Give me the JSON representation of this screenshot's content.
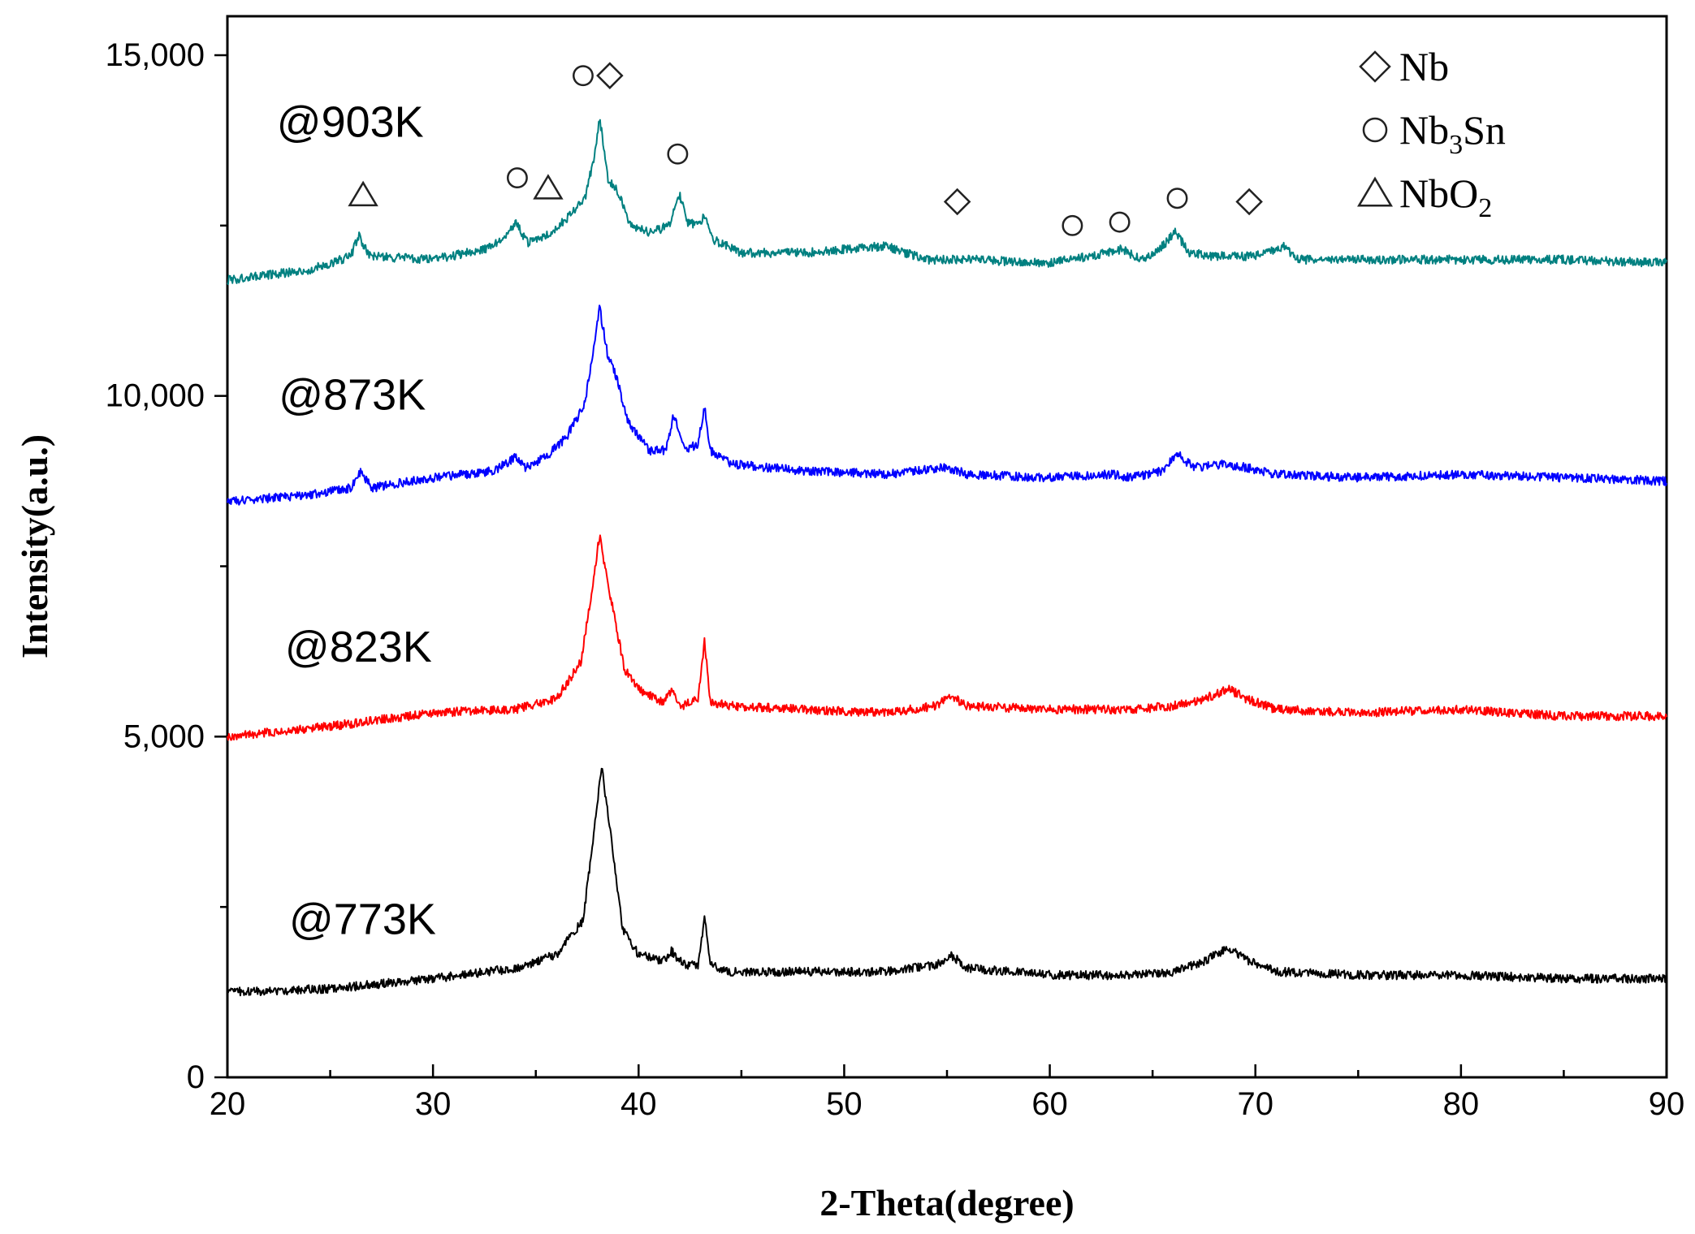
{
  "chart_data": {
    "type": "line",
    "title": "",
    "xlabel": "2-Theta(degree)",
    "ylabel": "Intensity(a.u.)",
    "xlim": [
      20,
      90
    ],
    "ylim": [
      0,
      15000
    ],
    "xticks": [
      20,
      30,
      40,
      50,
      60,
      70,
      80,
      90
    ],
    "xtick_labels": [
      "20",
      "30",
      "40",
      "50",
      "60",
      "70",
      "80",
      "90"
    ],
    "yticks": [
      0,
      5000,
      10000,
      15000
    ],
    "ytick_labels": [
      "0",
      "5,000",
      "10,000",
      "15,000"
    ],
    "grid": false,
    "series": [
      {
        "name": "@773K",
        "color": "#000000",
        "label_at": [
          23.0,
          2100
        ],
        "points": [
          [
            20,
            1250
          ],
          [
            25,
            1300
          ],
          [
            30,
            1450
          ],
          [
            34,
            1600
          ],
          [
            36,
            1800
          ],
          [
            37.3,
            2300
          ],
          [
            37.9,
            3800
          ],
          [
            38.2,
            4550
          ],
          [
            38.6,
            3700
          ],
          [
            39.2,
            2200
          ],
          [
            40,
            1800
          ],
          [
            41.2,
            1700
          ],
          [
            41.6,
            1850
          ],
          [
            42.2,
            1650
          ],
          [
            42.9,
            1650
          ],
          [
            43.2,
            2350
          ],
          [
            43.5,
            1650
          ],
          [
            44.5,
            1550
          ],
          [
            48,
            1550
          ],
          [
            52,
            1550
          ],
          [
            54.5,
            1650
          ],
          [
            55.2,
            1800
          ],
          [
            56,
            1600
          ],
          [
            60,
            1500
          ],
          [
            64,
            1500
          ],
          [
            66,
            1550
          ],
          [
            67.5,
            1700
          ],
          [
            68.7,
            1900
          ],
          [
            69.7,
            1700
          ],
          [
            71,
            1550
          ],
          [
            75,
            1500
          ],
          [
            80,
            1500
          ],
          [
            85,
            1450
          ],
          [
            90,
            1450
          ]
        ]
      },
      {
        "name": "@823K",
        "color": "#ff0000",
        "label_at": [
          22.8,
          6100
        ],
        "points": [
          [
            20,
            5000
          ],
          [
            25,
            5150
          ],
          [
            30,
            5350
          ],
          [
            34,
            5400
          ],
          [
            36,
            5550
          ],
          [
            37.2,
            6100
          ],
          [
            37.8,
            7300
          ],
          [
            38.1,
            7950
          ],
          [
            38.6,
            7100
          ],
          [
            39.3,
            6000
          ],
          [
            40.2,
            5650
          ],
          [
            41.2,
            5500
          ],
          [
            41.6,
            5700
          ],
          [
            42.1,
            5450
          ],
          [
            42.9,
            5550
          ],
          [
            43.2,
            6400
          ],
          [
            43.5,
            5500
          ],
          [
            44.5,
            5450
          ],
          [
            48,
            5400
          ],
          [
            52,
            5350
          ],
          [
            54.5,
            5450
          ],
          [
            55.2,
            5600
          ],
          [
            56,
            5450
          ],
          [
            60,
            5400
          ],
          [
            64,
            5400
          ],
          [
            66,
            5450
          ],
          [
            67.5,
            5550
          ],
          [
            68.7,
            5700
          ],
          [
            69.6,
            5550
          ],
          [
            71,
            5400
          ],
          [
            75,
            5350
          ],
          [
            80,
            5400
          ],
          [
            85,
            5300
          ],
          [
            90,
            5300
          ]
        ]
      },
      {
        "name": "@873K",
        "color": "#0000ff",
        "label_at": [
          22.5,
          9800
        ],
        "points": [
          [
            20,
            8450
          ],
          [
            24,
            8550
          ],
          [
            26,
            8650
          ],
          [
            26.5,
            8900
          ],
          [
            27,
            8650
          ],
          [
            30,
            8800
          ],
          [
            33,
            8900
          ],
          [
            34,
            9100
          ],
          [
            34.5,
            8950
          ],
          [
            35.5,
            9100
          ],
          [
            36.5,
            9400
          ],
          [
            37.4,
            9900
          ],
          [
            38.1,
            11300
          ],
          [
            38.5,
            10600
          ],
          [
            38.9,
            10300
          ],
          [
            39.5,
            9600
          ],
          [
            40.5,
            9200
          ],
          [
            41.3,
            9200
          ],
          [
            41.7,
            9700
          ],
          [
            42.3,
            9200
          ],
          [
            42.9,
            9300
          ],
          [
            43.2,
            9850
          ],
          [
            43.5,
            9200
          ],
          [
            44.5,
            9000
          ],
          [
            48,
            8900
          ],
          [
            52,
            8850
          ],
          [
            55,
            8950
          ],
          [
            56,
            8850
          ],
          [
            60,
            8800
          ],
          [
            63,
            8850
          ],
          [
            64,
            8800
          ],
          [
            65.5,
            8900
          ],
          [
            66.2,
            9150
          ],
          [
            67,
            8950
          ],
          [
            68.5,
            9000
          ],
          [
            69.5,
            8950
          ],
          [
            71,
            8850
          ],
          [
            75,
            8800
          ],
          [
            80,
            8850
          ],
          [
            85,
            8800
          ],
          [
            90,
            8750
          ]
        ]
      },
      {
        "name": "@903K",
        "color": "#008080",
        "label_at": [
          22.4,
          13800
        ],
        "points": [
          [
            20,
            11700
          ],
          [
            24,
            11850
          ],
          [
            26,
            12050
          ],
          [
            26.4,
            12350
          ],
          [
            26.9,
            12050
          ],
          [
            30,
            12000
          ],
          [
            32.5,
            12150
          ],
          [
            33.5,
            12300
          ],
          [
            34,
            12550
          ],
          [
            34.6,
            12250
          ],
          [
            35.5,
            12350
          ],
          [
            36.5,
            12600
          ],
          [
            37.4,
            12900
          ],
          [
            37.9,
            13600
          ],
          [
            38.1,
            14100
          ],
          [
            38.5,
            13200
          ],
          [
            39,
            13000
          ],
          [
            39.6,
            12500
          ],
          [
            40.6,
            12400
          ],
          [
            41.5,
            12500
          ],
          [
            42,
            12950
          ],
          [
            42.4,
            12550
          ],
          [
            42.9,
            12500
          ],
          [
            43.2,
            12650
          ],
          [
            43.6,
            12300
          ],
          [
            45,
            12100
          ],
          [
            48,
            12100
          ],
          [
            52,
            12200
          ],
          [
            54,
            12000
          ],
          [
            56,
            12000
          ],
          [
            60,
            11950
          ],
          [
            62,
            12050
          ],
          [
            63.5,
            12150
          ],
          [
            64.5,
            12000
          ],
          [
            65.5,
            12200
          ],
          [
            66.1,
            12400
          ],
          [
            66.8,
            12100
          ],
          [
            68,
            12050
          ],
          [
            70,
            12050
          ],
          [
            71.4,
            12200
          ],
          [
            72,
            12000
          ],
          [
            75,
            12000
          ],
          [
            80,
            12000
          ],
          [
            85,
            12000
          ],
          [
            90,
            11950
          ]
        ]
      }
    ],
    "legend": {
      "placement": "top-right",
      "entries": [
        {
          "marker": "diamond",
          "label": "Nb"
        },
        {
          "marker": "circle",
          "label": "Nb",
          "subscript": "3",
          "label_suffix": "Sn"
        },
        {
          "marker": "triangle",
          "label": "NbO",
          "subscript": "2"
        }
      ]
    },
    "annotations": [
      {
        "marker": "triangle",
        "x": 26.6,
        "y": 12950
      },
      {
        "marker": "circle",
        "x": 34.1,
        "y": 13200
      },
      {
        "marker": "triangle",
        "x": 35.6,
        "y": 13050
      },
      {
        "marker": "circle",
        "x": 37.3,
        "y": 14700
      },
      {
        "marker": "diamond",
        "x": 38.6,
        "y": 14700
      },
      {
        "marker": "circle",
        "x": 41.9,
        "y": 13550
      },
      {
        "marker": "diamond",
        "x": 55.5,
        "y": 12850
      },
      {
        "marker": "circle",
        "x": 61.1,
        "y": 12500
      },
      {
        "marker": "circle",
        "x": 63.4,
        "y": 12550
      },
      {
        "marker": "circle",
        "x": 66.2,
        "y": 12900
      },
      {
        "marker": "diamond",
        "x": 69.7,
        "y": 12850
      }
    ]
  }
}
